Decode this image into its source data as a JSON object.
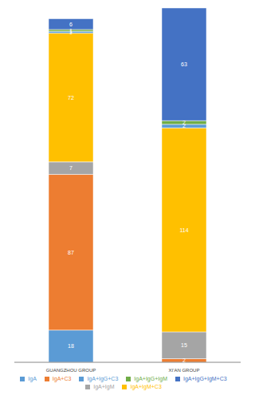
{
  "chart_data": {
    "type": "bar",
    "stacked": true,
    "data_labels": true,
    "tick_labels": "x",
    "legend": "bottom",
    "categories": [
      "GUANGZHOU GROUP",
      "XI'AN GROUP"
    ],
    "series": [
      {
        "name": "IgA",
        "color": "#5b9bd5",
        "values": [
          18,
          null
        ]
      },
      {
        "name": "IgA+C3",
        "color": "#ed7d31",
        "values": [
          87,
          2
        ]
      },
      {
        "name": "IgA+IgM",
        "color": "#a5a5a5",
        "values": [
          7,
          15
        ]
      },
      {
        "name": "IgA+IgM+C3",
        "color": "#ffc000",
        "values": [
          72,
          114
        ]
      },
      {
        "name": "IgA+IgG+C3",
        "color": "#5b9bd5",
        "values": [
          1,
          2
        ]
      },
      {
        "name": "IgA+IgG+IgM",
        "color": "#70ad47",
        "values": [
          1,
          2
        ]
      },
      {
        "name": "IgA+IgG+IgM+C3",
        "color": "#4472c4",
        "values": [
          6,
          63
        ]
      }
    ]
  }
}
